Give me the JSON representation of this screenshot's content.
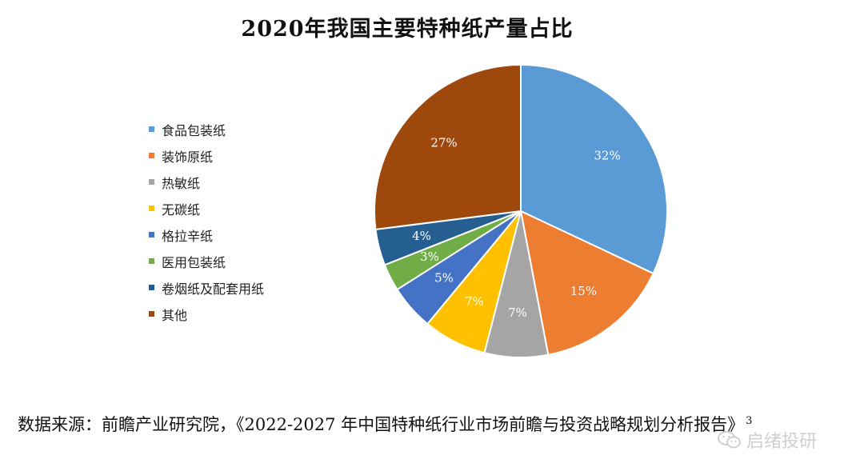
{
  "chart_data": {
    "type": "pie",
    "title": "2020年我国主要特种纸产量占比",
    "legend_position": "left",
    "slices": [
      {
        "name": "食品包装纸",
        "value": 32,
        "label": "32%",
        "color": "#5B9BD5"
      },
      {
        "name": "装饰原纸",
        "value": 15,
        "label": "15%",
        "color": "#ED7D31"
      },
      {
        "name": "热敏纸",
        "value": 7,
        "label": "7%",
        "color": "#A5A5A5"
      },
      {
        "name": "无碳纸",
        "value": 7,
        "label": "7%",
        "color": "#FFC000"
      },
      {
        "name": "格拉辛纸",
        "value": 5,
        "label": "5%",
        "color": "#4472C4"
      },
      {
        "name": "医用包装纸",
        "value": 3,
        "label": "3%",
        "color": "#70AD47"
      },
      {
        "name": "卷烟纸及配套用纸",
        "value": 4,
        "label": "4%",
        "color": "#255E91"
      },
      {
        "name": "其他",
        "value": 27,
        "label": "27%",
        "color": "#9E480E"
      }
    ]
  },
  "source": {
    "text": "数据来源：前瞻产业研究院，《2022-2027 年中国特种纸行业市场前瞻与投资战略规划分析报告》",
    "footnote": "3"
  },
  "watermark": {
    "text": "启绪投研",
    "icon": "wechat-icon"
  }
}
